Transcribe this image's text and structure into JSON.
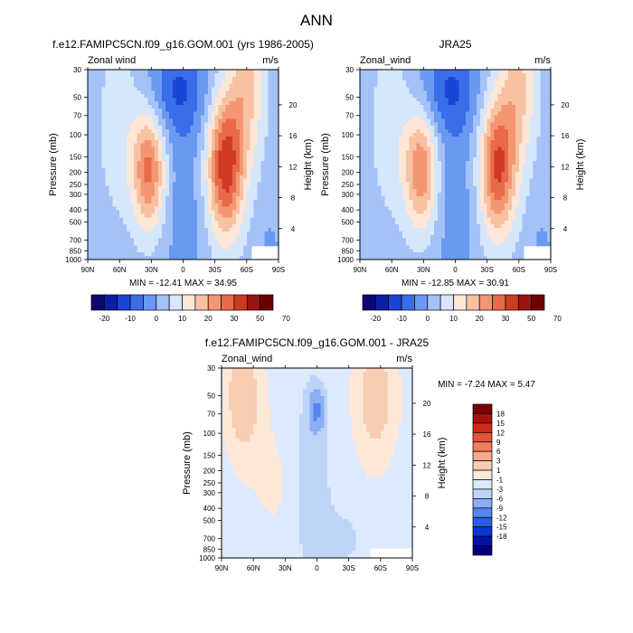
{
  "figure": {
    "main_title": "ANN",
    "bg_color": "#ffffff"
  },
  "chart_data": [
    {
      "type": "heatmap",
      "id": "p1",
      "title": "f.e12.FAMIPC5CN.f09_g16.GOM.001 (yrs 1986-2005)",
      "left_label": "Zonal wind",
      "right_label": "m/s",
      "ylabel": "Pressure (mb)",
      "ylabel_right": "Height (km)",
      "x_ticks": [
        "90N",
        "60N",
        "30N",
        "0",
        "30S",
        "60S",
        "90S"
      ],
      "y_ticks": [
        "30",
        "50",
        "70",
        "100",
        "150",
        "200",
        "250",
        "300",
        "400",
        "500",
        "700",
        "850",
        "1000"
      ],
      "height_ticks": [
        "20",
        "16",
        "12",
        "8",
        "4"
      ],
      "y_scale": "log-pressure",
      "ylim": [
        1000,
        30
      ],
      "xlim": [
        "90N",
        "90S"
      ],
      "min": "-12.41",
      "max": "34.95",
      "min_label": "MIN =",
      "max_label": "MAX =",
      "contour_levels": [
        -20,
        -10,
        0,
        10,
        20,
        30,
        50,
        70
      ],
      "colorbar_labels": [
        "-20",
        "-10",
        "0",
        "10",
        "20",
        "30",
        "50",
        "70"
      ]
    },
    {
      "type": "heatmap",
      "id": "p2",
      "title": "JRA25",
      "left_label": "Zonal_wind",
      "right_label": "m/s",
      "ylabel": "Pressure (mb)",
      "ylabel_right": "Height (km)",
      "x_ticks": [
        "90N",
        "60N",
        "30N",
        "0",
        "30S",
        "60S",
        "90S"
      ],
      "y_ticks": [
        "30",
        "50",
        "70",
        "100",
        "150",
        "200",
        "250",
        "300",
        "400",
        "500",
        "700",
        "850",
        "1000"
      ],
      "height_ticks": [
        "20",
        "16",
        "12",
        "8",
        "4"
      ],
      "y_scale": "log-pressure",
      "ylim": [
        1000,
        30
      ],
      "xlim": [
        "90N",
        "90S"
      ],
      "min": "-12.85",
      "max": "30.91",
      "min_label": "MIN =",
      "max_label": "MAX =",
      "contour_levels": [
        -20,
        -10,
        0,
        10,
        20,
        30,
        50,
        70
      ],
      "colorbar_labels": [
        "-20",
        "-10",
        "0",
        "10",
        "20",
        "30",
        "50",
        "70"
      ]
    },
    {
      "type": "heatmap",
      "id": "p3",
      "title": "f.e12.FAMIPC5CN.f09_g16.GOM.001 - JRA25",
      "left_label": "Zonal_wind",
      "right_label": "m/s",
      "ylabel": "Pressure (mb)",
      "ylabel_right": "Height (km)",
      "x_ticks": [
        "90N",
        "60N",
        "30N",
        "0",
        "30S",
        "60S",
        "90S"
      ],
      "y_ticks": [
        "30",
        "50",
        "70",
        "100",
        "150",
        "200",
        "250",
        "300",
        "400",
        "500",
        "700",
        "850",
        "1000"
      ],
      "height_ticks": [
        "20",
        "16",
        "12",
        "8",
        "4"
      ],
      "y_scale": "log-pressure",
      "ylim": [
        1000,
        30
      ],
      "xlim": [
        "90N",
        "90S"
      ],
      "min": "-7.24",
      "max": "5.47",
      "min_label": "MIN =",
      "max_label": "MAX =",
      "contour_levels": [
        -18,
        -15,
        -12,
        -9,
        -6,
        -3,
        -1,
        1,
        3,
        6,
        9,
        12,
        15,
        18
      ],
      "colorbar_labels": [
        "18",
        "15",
        "12",
        "9",
        "6",
        "3",
        "1",
        "-1",
        "-3",
        "-6",
        "-9",
        "-12",
        "-15",
        "-18"
      ]
    }
  ],
  "colors": {
    "abs_scale": [
      "#0a0a70",
      "#0a1fa8",
      "#1a44d6",
      "#3a6ee8",
      "#6a99f2",
      "#a4c2f7",
      "#d6e6fb",
      "#fde6d6",
      "#f7c1a2",
      "#f39772",
      "#e86a48",
      "#cf3a25",
      "#9c1410",
      "#6b0000"
    ],
    "diff_scale": [
      "#00007a",
      "#0013a8",
      "#0a35d0",
      "#2a5be6",
      "#5586ee",
      "#8aaff3",
      "#bed3f8",
      "#dde9fc",
      "#fde8d8",
      "#f8cdb2",
      "#f4a98a",
      "#ee7d5e",
      "#e4533a",
      "#cf2a1c",
      "#a8100c",
      "#7a0000"
    ]
  }
}
